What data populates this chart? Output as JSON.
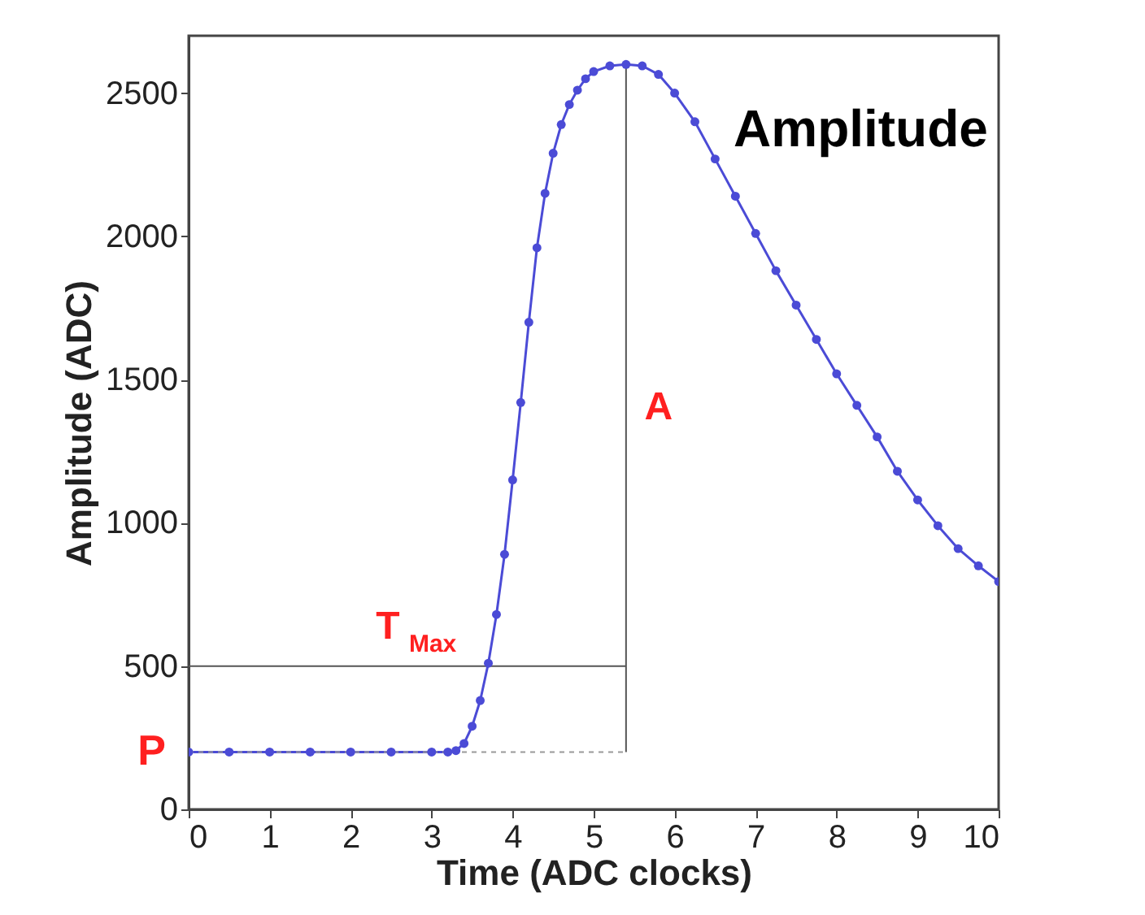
{
  "chart_data": {
    "type": "line",
    "title": "Amplitude",
    "xlabel": "Time (ADC clocks)",
    "ylabel": "Amplitude (ADC)",
    "xlim": [
      0,
      10
    ],
    "xticks": [
      0,
      1,
      2,
      3,
      4,
      5,
      6,
      7,
      8,
      9,
      10
    ],
    "ylim": [
      0,
      2700
    ],
    "yticks": [
      0,
      500,
      1000,
      1500,
      2000,
      2500
    ],
    "grid": false,
    "marker": "circle",
    "line_style": "solid",
    "series": [
      {
        "color": "#4b4bd6",
        "x": [
          0,
          0.5,
          1,
          1.5,
          2,
          2.5,
          3,
          3.2,
          3.3,
          3.4,
          3.5,
          3.6,
          3.7,
          3.8,
          3.9,
          4.0,
          4.1,
          4.2,
          4.3,
          4.4,
          4.5,
          4.6,
          4.7,
          4.8,
          4.9,
          5.0,
          5.2,
          5.4,
          5.6,
          5.8,
          6.0,
          6.25,
          6.5,
          6.75,
          7.0,
          7.25,
          7.5,
          7.75,
          8.0,
          8.25,
          8.5,
          8.75,
          9.0,
          9.25,
          9.5,
          9.75,
          10
        ],
        "values": [
          200,
          200,
          200,
          200,
          200,
          200,
          200,
          200,
          205,
          230,
          290,
          380,
          510,
          680,
          890,
          1150,
          1420,
          1700,
          1960,
          2150,
          2290,
          2390,
          2460,
          2510,
          2550,
          2575,
          2595,
          2600,
          2595,
          2565,
          2500,
          2400,
          2270,
          2140,
          2010,
          1880,
          1760,
          1640,
          1520,
          1410,
          1300,
          1180,
          1080,
          990,
          910,
          850,
          795
        ]
      }
    ],
    "ref_lines": [
      {
        "axis": "y",
        "value": 500,
        "label": "T$_{Max}$",
        "color": "#555555"
      },
      {
        "axis": "x",
        "value": 5.4,
        "label": "A",
        "color": "#555555"
      },
      {
        "axis": "y",
        "value": 200,
        "label": "P",
        "color": "#999999",
        "line_style": "dashed"
      }
    ]
  }
}
